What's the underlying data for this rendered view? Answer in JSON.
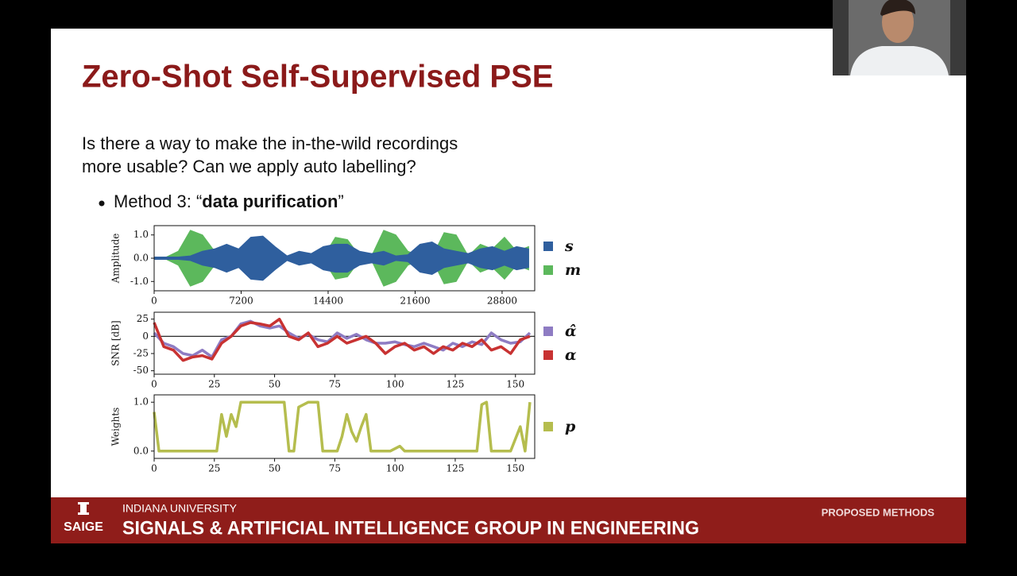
{
  "slide": {
    "title": "Zero-Shot Self-Supervised PSE",
    "text_lines": [
      "Is there a way to make the in-the-wild recordings",
      "more usable? Can we apply auto labelling?"
    ],
    "bullet": {
      "prefix": "Method 3: “",
      "bold": "data purification",
      "suffix": "”"
    }
  },
  "footer": {
    "logo": "SAIGE",
    "university": "INDIANA UNIVERSITY",
    "group": "SIGNALS & ARTIFICIAL INTELLIGENCE GROUP IN ENGINEERING",
    "section": "PROPOSED METHODS"
  },
  "chart_data": [
    {
      "type": "envelope",
      "ylabel": "Amplitude",
      "x": [
        0,
        1000,
        2000,
        3000,
        4000,
        5000,
        6000,
        7000,
        8000,
        9000,
        10000,
        11000,
        12000,
        13000,
        14000,
        15000,
        16000,
        17000,
        18000,
        19000,
        20000,
        21000,
        22000,
        23000,
        24000,
        25000,
        26000,
        27000,
        28000,
        29000,
        30000,
        31000
      ],
      "xlim": [
        0,
        31500
      ],
      "xticks": [
        0,
        7200,
        14400,
        21600,
        28800
      ],
      "ylim": [
        -1.4,
        1.4
      ],
      "yticks": [
        {
          "value": -1,
          "label": "-1.0"
        },
        {
          "value": 0,
          "label": "0.0"
        },
        {
          "value": 1,
          "label": "1.0"
        }
      ],
      "series": [
        {
          "name": "m",
          "color": "#5cb85c",
          "values": [
            0.05,
            0.05,
            0.3,
            1.2,
            1.0,
            0.3,
            0.1,
            0.05,
            0.05,
            0.05,
            0.05,
            0.05,
            0.05,
            0.05,
            0.05,
            0.9,
            0.8,
            0.1,
            0.1,
            1.2,
            1.0,
            0.3,
            0.1,
            0.05,
            1.1,
            1.0,
            0.1,
            0.6,
            0.4,
            0.9,
            0.3,
            0.5
          ]
        },
        {
          "name": "s",
          "color": "#2f5f9e",
          "values": [
            0.05,
            0.05,
            0.05,
            0.1,
            0.3,
            0.4,
            0.6,
            0.4,
            0.9,
            0.95,
            0.5,
            0.1,
            0.3,
            0.2,
            0.5,
            0.6,
            0.6,
            0.3,
            0.2,
            0.3,
            0.1,
            0.15,
            0.6,
            0.7,
            0.4,
            0.3,
            0.2,
            0.4,
            0.5,
            0.3,
            0.5,
            0.4
          ]
        }
      ],
      "legend_order": [
        1,
        0
      ]
    },
    {
      "type": "line",
      "ylabel": "SNR [dB]",
      "x": [
        0,
        4,
        8,
        12,
        16,
        20,
        24,
        28,
        32,
        36,
        40,
        44,
        48,
        52,
        56,
        60,
        64,
        68,
        72,
        76,
        80,
        84,
        88,
        92,
        96,
        100,
        104,
        108,
        112,
        116,
        120,
        124,
        128,
        132,
        136,
        140,
        144,
        148,
        152,
        156
      ],
      "xlim": [
        0,
        158
      ],
      "xticks": [
        0,
        25,
        50,
        75,
        100,
        125,
        150
      ],
      "ylim": [
        -55,
        35
      ],
      "yticks": [
        -50,
        -25,
        0,
        25
      ],
      "zero_line": true,
      "series": [
        {
          "name": "α̂",
          "color": "#8e7cc3",
          "values": [
            5,
            -10,
            -15,
            -25,
            -28,
            -20,
            -30,
            -5,
            0,
            18,
            22,
            15,
            12,
            15,
            5,
            -3,
            3,
            -5,
            -8,
            5,
            -3,
            3,
            -5,
            -10,
            -10,
            -8,
            -12,
            -15,
            -10,
            -15,
            -20,
            -10,
            -15,
            -8,
            -12,
            5,
            -5,
            -10,
            -8,
            5
          ]
        },
        {
          "name": "α",
          "color": "#c83232",
          "values": [
            20,
            -15,
            -20,
            -35,
            -30,
            -28,
            -33,
            -10,
            0,
            15,
            20,
            18,
            15,
            25,
            0,
            -5,
            5,
            -15,
            -10,
            0,
            -10,
            -5,
            0,
            -10,
            -25,
            -15,
            -10,
            -20,
            -15,
            -25,
            -15,
            -20,
            -10,
            -15,
            -5,
            -20,
            -15,
            -25,
            -5,
            0
          ]
        }
      ],
      "legend_order": [
        0,
        1
      ]
    },
    {
      "type": "line",
      "ylabel": "Weights",
      "x": [
        0,
        2,
        6,
        10,
        14,
        18,
        22,
        26,
        28,
        30,
        32,
        34,
        36,
        40,
        44,
        48,
        52,
        54,
        56,
        58,
        60,
        64,
        68,
        70,
        72,
        76,
        78,
        80,
        82,
        84,
        86,
        88,
        90,
        94,
        98,
        102,
        104,
        110,
        120,
        130,
        134,
        136,
        138,
        140,
        144,
        148,
        152,
        154,
        156
      ],
      "xlim": [
        0,
        158
      ],
      "xticks": [
        0,
        25,
        50,
        75,
        100,
        125,
        150
      ],
      "ylim": [
        -0.15,
        1.15
      ],
      "yticks": [
        {
          "value": 0,
          "label": "0.0"
        },
        {
          "value": 1,
          "label": "1.0"
        }
      ],
      "series": [
        {
          "name": "p",
          "color": "#b5bd4e",
          "values": [
            0.8,
            0,
            0,
            0,
            0,
            0,
            0,
            0,
            0.75,
            0.3,
            0.75,
            0.5,
            1,
            1,
            1,
            1,
            1,
            1,
            0,
            0,
            0.9,
            1,
            1,
            0,
            0,
            0,
            0.3,
            0.75,
            0.4,
            0.2,
            0.5,
            0.75,
            0,
            0,
            0,
            0.1,
            0,
            0,
            0,
            0,
            0,
            0.95,
            1,
            0,
            0,
            0,
            0.5,
            0,
            1
          ]
        }
      ],
      "legend_order": [
        0
      ]
    }
  ]
}
